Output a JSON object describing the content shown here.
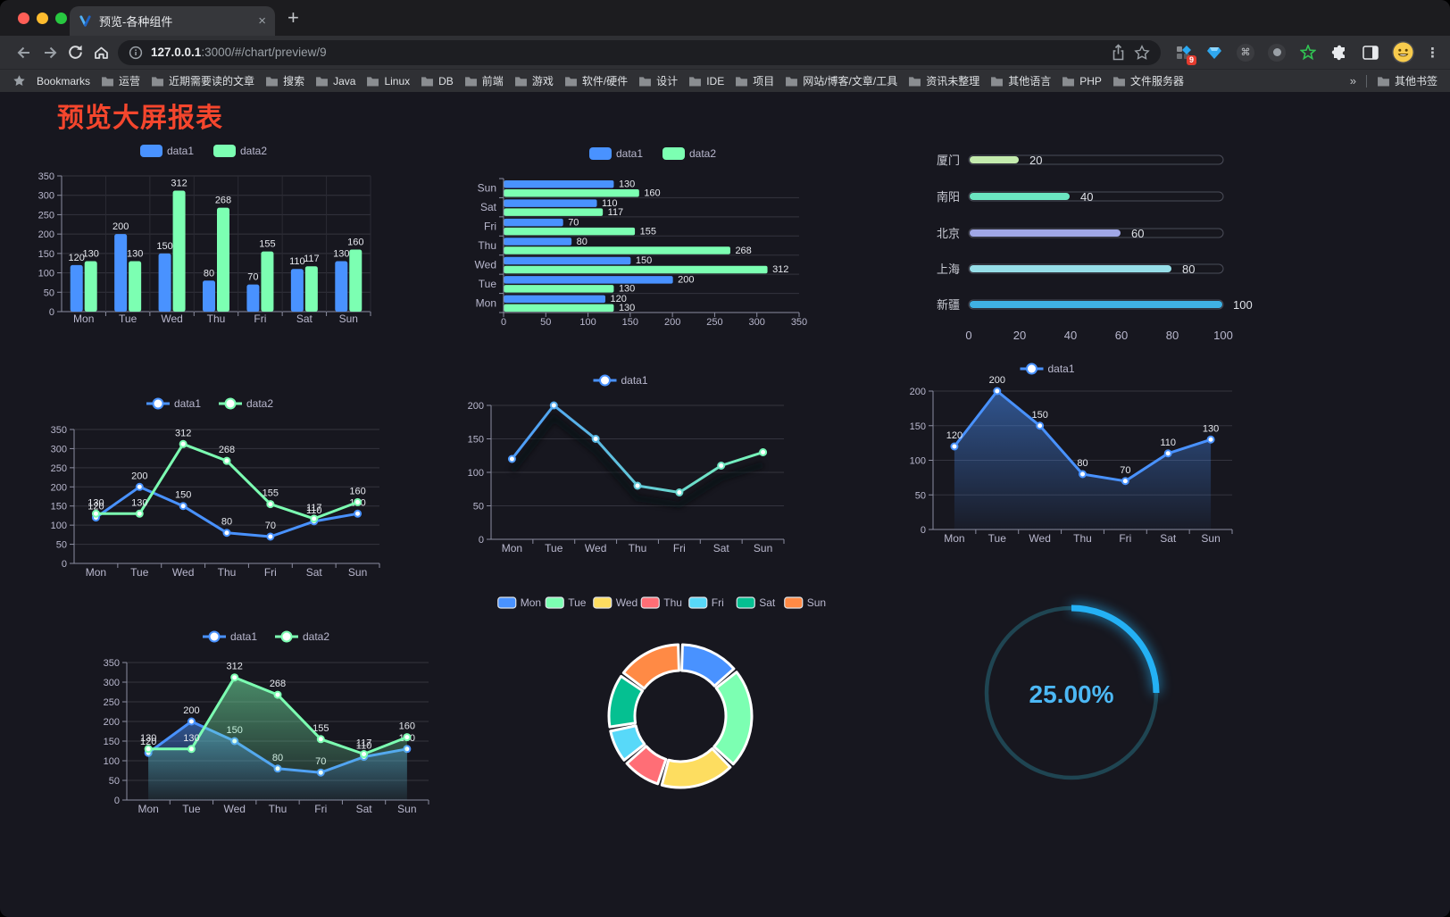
{
  "browser": {
    "tab_title": "预览-各种组件",
    "tab_close": "×",
    "new_tab_plus": "+",
    "url_host": "127.0.0.1",
    "url_rest": ":3000/#/chart/preview/9",
    "bookmarks_label": "Bookmarks",
    "bookmarks": [
      "运营",
      "近期需要读的文章",
      "搜索",
      "Java",
      "Linux",
      "DB",
      "前端",
      "游戏",
      "软件/硬件",
      "设计",
      "IDE",
      "项目",
      "网站/博客/文章/工具",
      "资讯未整理",
      "其他语言",
      "PHP",
      "文件服务器"
    ],
    "overflow_chevron": "»",
    "other_bookmarks": "其他书签",
    "extension_badge": "9"
  },
  "icons": {
    "command_glyph": "⌘",
    "menu_glyph": "⋮"
  },
  "page": {
    "title": "预览大屏报表",
    "title_color": "#f5462d",
    "background": "#17171f"
  },
  "chart_data": [
    {
      "id": "grouped-bar",
      "type": "bar",
      "categories": [
        "Mon",
        "Tue",
        "Wed",
        "Thu",
        "Fri",
        "Sat",
        "Sun"
      ],
      "series": [
        {
          "name": "data1",
          "color": "#4992ff",
          "values": [
            120,
            200,
            150,
            80,
            70,
            110,
            130
          ]
        },
        {
          "name": "data2",
          "color": "#7cffb2",
          "values": [
            130,
            130,
            312,
            268,
            155,
            117,
            160
          ]
        }
      ],
      "ylim": [
        0,
        350
      ],
      "yticks": [
        0,
        50,
        100,
        150,
        200,
        250,
        300,
        350
      ],
      "legend_position": "top",
      "grid": true
    },
    {
      "id": "horizontal-bar",
      "type": "bar-horizontal",
      "categories": [
        "Mon",
        "Tue",
        "Wed",
        "Thu",
        "Fri",
        "Sat",
        "Sun"
      ],
      "series": [
        {
          "name": "data1",
          "color": "#4992ff",
          "values": [
            120,
            200,
            150,
            80,
            70,
            110,
            130
          ]
        },
        {
          "name": "data2",
          "color": "#7cffb2",
          "values": [
            130,
            130,
            312,
            268,
            155,
            117,
            160
          ]
        }
      ],
      "xlim": [
        0,
        350
      ],
      "xticks": [
        0,
        50,
        100,
        150,
        200,
        250,
        300,
        350
      ],
      "legend_position": "top",
      "grid": true
    },
    {
      "id": "city-progress",
      "type": "bar-progress",
      "items": [
        {
          "label": "厦门",
          "value": 20,
          "color": "#c4ebad"
        },
        {
          "label": "南阳",
          "value": 40,
          "color": "#6be6c1"
        },
        {
          "label": "北京",
          "value": 60,
          "color": "#a0a7e6"
        },
        {
          "label": "上海",
          "value": 80,
          "color": "#96dee8"
        },
        {
          "label": "新疆",
          "value": 100,
          "color": "#3fb1e3"
        }
      ],
      "xlim": [
        0,
        100
      ],
      "xticks": [
        0,
        20,
        40,
        60,
        80,
        100
      ]
    },
    {
      "id": "line-two-series",
      "type": "line",
      "categories": [
        "Mon",
        "Tue",
        "Wed",
        "Thu",
        "Fri",
        "Sat",
        "Sun"
      ],
      "series": [
        {
          "name": "data1",
          "color": "#4992ff",
          "values": [
            120,
            200,
            150,
            80,
            70,
            110,
            130
          ]
        },
        {
          "name": "data2",
          "color": "#7cffb2",
          "values": [
            130,
            130,
            312,
            268,
            155,
            117,
            160
          ]
        }
      ],
      "ylim": [
        0,
        350
      ],
      "yticks": [
        0,
        50,
        100,
        150,
        200,
        250,
        300,
        350
      ],
      "legend_position": "top"
    },
    {
      "id": "line-gradient",
      "type": "line",
      "categories": [
        "Mon",
        "Tue",
        "Wed",
        "Thu",
        "Fri",
        "Sat",
        "Sun"
      ],
      "series": [
        {
          "name": "data1",
          "color_gradient": [
            "#4992ff",
            "#7cffb2"
          ],
          "values": [
            120,
            200,
            150,
            80,
            70,
            110,
            130
          ]
        }
      ],
      "ylim": [
        0,
        200
      ],
      "yticks": [
        0,
        50,
        100,
        150,
        200
      ],
      "legend_position": "top"
    },
    {
      "id": "line-area",
      "type": "area",
      "categories": [
        "Mon",
        "Tue",
        "Wed",
        "Thu",
        "Fri",
        "Sat",
        "Sun"
      ],
      "series": [
        {
          "name": "data1",
          "color": "#4992ff",
          "values": [
            120,
            200,
            150,
            80,
            70,
            110,
            130
          ]
        }
      ],
      "ylim": [
        0,
        200
      ],
      "yticks": [
        0,
        50,
        100,
        150,
        200
      ],
      "legend_position": "top"
    },
    {
      "id": "line-area-two-series",
      "type": "area",
      "categories": [
        "Mon",
        "Tue",
        "Wed",
        "Thu",
        "Fri",
        "Sat",
        "Sun"
      ],
      "series": [
        {
          "name": "data1",
          "color": "#4992ff",
          "values": [
            120,
            200,
            150,
            80,
            70,
            110,
            130
          ]
        },
        {
          "name": "data2",
          "color": "#7cffb2",
          "values": [
            130,
            130,
            312,
            268,
            155,
            117,
            160
          ]
        }
      ],
      "ylim": [
        0,
        350
      ],
      "yticks": [
        0,
        50,
        100,
        150,
        200,
        250,
        300,
        350
      ],
      "legend_position": "top"
    },
    {
      "id": "week-donut",
      "type": "pie",
      "labels": [
        "Mon",
        "Tue",
        "Wed",
        "Thu",
        "Fri",
        "Sat",
        "Sun"
      ],
      "values": [
        120,
        200,
        150,
        80,
        70,
        110,
        130
      ],
      "colors": [
        "#4992ff",
        "#7cffb2",
        "#fddd60",
        "#ff6e76",
        "#58d9f9",
        "#05c091",
        "#ff8a45"
      ],
      "legend_position": "top",
      "inner_radius_ratio": 0.64
    },
    {
      "id": "percent-gauge",
      "type": "gauge",
      "value_label": "25.00%",
      "percent": 25,
      "color": "#24b1f5",
      "track_color": "#1f4552",
      "text_color": "#4cb8f5"
    }
  ]
}
